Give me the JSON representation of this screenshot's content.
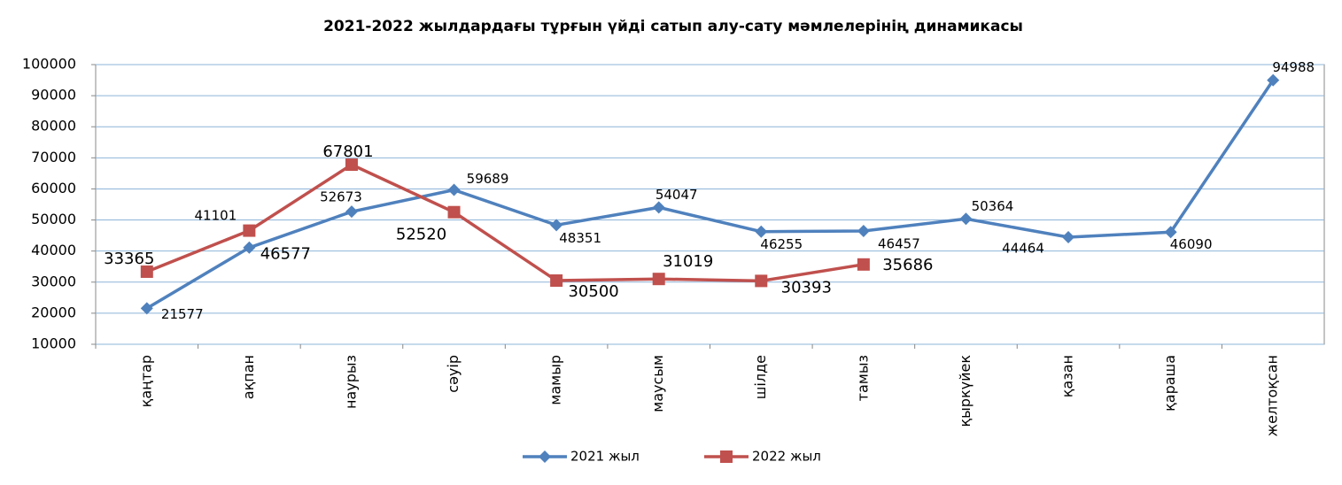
{
  "chart_data": {
    "type": "line",
    "title": "2021-2022 жылдардағы тұрғын үйді сатып алу-сату мәмлелерінің динамикасы",
    "categories": [
      "қаңтар",
      "ақпан",
      "наурыз",
      "сәуір",
      "мамыр",
      "маусым",
      "шілде",
      "тамыз",
      "қыркүйек",
      "қазан",
      "қараша",
      "желтоқсан"
    ],
    "series": [
      {
        "name": "2021 жыл",
        "color": "#4f81bd",
        "marker": "diamond",
        "values": [
          21577,
          41101,
          52673,
          59689,
          48351,
          54047,
          46255,
          46457,
          50364,
          44464,
          46090,
          94988
        ]
      },
      {
        "name": "2022 жыл",
        "color": "#c0504d",
        "marker": "square",
        "values": [
          33365,
          46577,
          67801,
          52520,
          30500,
          31019,
          30393,
          35686,
          null,
          null,
          null,
          null
        ]
      }
    ],
    "ylim": [
      10000,
      100000
    ],
    "yticks": [
      10000,
      20000,
      30000,
      40000,
      50000,
      60000,
      70000,
      80000,
      90000,
      100000
    ],
    "grid": true,
    "legend": "bottom"
  }
}
